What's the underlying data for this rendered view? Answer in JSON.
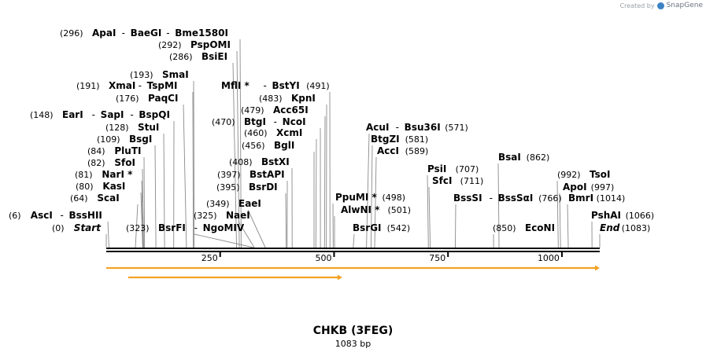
{
  "credit": {
    "prefix": "Created by",
    "brand": "SnapGene"
  },
  "title": "CHKB (3FEG)",
  "length_label": "1083 bp",
  "sequence_length": 1083,
  "colors": {
    "feature": "#f2a227",
    "feature_glow": "#fde7c0",
    "line": "#000000",
    "leader": "#8a8a8a"
  },
  "ticks": [
    {
      "pos": 250,
      "label": "250"
    },
    {
      "pos": 500,
      "label": "500"
    },
    {
      "pos": 750,
      "label": "750"
    },
    {
      "pos": 1000,
      "label": "1000"
    }
  ],
  "features": [
    {
      "name": "feature-arrow-main",
      "start": 0,
      "end": 1083
    },
    {
      "name": "feature-arrow-secondary",
      "start": 48,
      "end": 518
    }
  ],
  "sites": [
    {
      "pos": 296,
      "text": "(296)",
      "names": [
        "ApaI",
        "BaeGI",
        "Bme1580I"
      ]
    },
    {
      "pos": 292,
      "text": "(292)",
      "names": [
        "PspOMI"
      ]
    },
    {
      "pos": 286,
      "text": "(286)",
      "names": [
        "BsiEI"
      ]
    },
    {
      "pos": 193,
      "text": "(193)",
      "names": [
        "SmaI"
      ]
    },
    {
      "pos": 191,
      "text": "(191)",
      "names": [
        "XmaI",
        "TspMI"
      ]
    },
    {
      "pos": 176,
      "text": "(176)",
      "names": [
        "PaqCI"
      ]
    },
    {
      "pos": 148,
      "text": "(148)",
      "names": [
        "EarI",
        "SapI",
        "BspQI"
      ]
    },
    {
      "pos": 128,
      "text": "(128)",
      "names": [
        "StuI"
      ]
    },
    {
      "pos": 109,
      "text": "(109)",
      "names": [
        "BsgI"
      ]
    },
    {
      "pos": 84,
      "text": "(84)",
      "names": [
        "PluTI"
      ]
    },
    {
      "pos": 82,
      "text": "(82)",
      "names": [
        "SfoI"
      ]
    },
    {
      "pos": 81,
      "text": "(81)",
      "names": [
        "NarI *"
      ]
    },
    {
      "pos": 80,
      "text": "(80)",
      "names": [
        "KasI"
      ]
    },
    {
      "pos": 64,
      "text": "(64)",
      "names": [
        "ScaI"
      ]
    },
    {
      "pos": 6,
      "text": "(6)",
      "names": [
        "AscI",
        "BssHII"
      ]
    },
    {
      "pos": 0,
      "text": "(0)",
      "names": [
        "Start"
      ],
      "italic": true
    },
    {
      "pos": 323,
      "text": "(323)",
      "names": [
        "BsrFI",
        "NgoMIV"
      ]
    },
    {
      "pos": 325,
      "text": "(325)",
      "names": [
        "NaeI"
      ]
    },
    {
      "pos": 349,
      "text": "(349)",
      "names": [
        "EaeI"
      ]
    },
    {
      "pos": 395,
      "text": "(395)",
      "names": [
        "BsrDI"
      ]
    },
    {
      "pos": 397,
      "text": "(397)",
      "names": [
        "BstAPI"
      ]
    },
    {
      "pos": 408,
      "text": "(408)",
      "names": [
        "BstXI"
      ]
    },
    {
      "pos": 456,
      "text": "(456)",
      "names": [
        "BglI"
      ]
    },
    {
      "pos": 460,
      "text": "(460)",
      "names": [
        "XcmI"
      ]
    },
    {
      "pos": 470,
      "text": "(470)",
      "names": [
        "BtgI",
        "NcoI"
      ]
    },
    {
      "pos": 479,
      "text": "(479)",
      "names": [
        "Acc65I"
      ]
    },
    {
      "pos": 483,
      "text": "(483)",
      "names": [
        "KpnI"
      ]
    },
    {
      "pos": 491,
      "text": "(491)",
      "names": [
        "MflI *",
        "BstYI"
      ]
    },
    {
      "pos": 498,
      "text": "(498)",
      "names": [
        "PpuMI *"
      ]
    },
    {
      "pos": 501,
      "text": "(501)",
      "names": [
        "AlwNI *"
      ]
    },
    {
      "pos": 542,
      "text": "(542)",
      "names": [
        "BsrGI"
      ]
    },
    {
      "pos": 571,
      "text": "(571)",
      "names": [
        "AcuI",
        "Bsu36I"
      ]
    },
    {
      "pos": 581,
      "text": "(581)",
      "names": [
        "BtgZI"
      ]
    },
    {
      "pos": 589,
      "text": "(589)",
      "names": [
        "AccI"
      ]
    },
    {
      "pos": 707,
      "text": "(707)",
      "names": [
        "PsiI"
      ]
    },
    {
      "pos": 711,
      "text": "(711)",
      "names": [
        "SfcI"
      ]
    },
    {
      "pos": 766,
      "text": "(766)",
      "names": [
        "BssSI",
        "BssSαI"
      ]
    },
    {
      "pos": 850,
      "text": "(850)",
      "names": [
        "EcoNI"
      ]
    },
    {
      "pos": 862,
      "text": "(862)",
      "names": [
        "BsaI"
      ]
    },
    {
      "pos": 992,
      "text": "(992)",
      "names": [
        "TsoI"
      ]
    },
    {
      "pos": 997,
      "text": "(997)",
      "names": [
        "ApoI"
      ]
    },
    {
      "pos": 1014,
      "text": "(1014)",
      "names": [
        "BmrI"
      ]
    },
    {
      "pos": 1066,
      "text": "(1066)",
      "names": [
        "PshAI"
      ]
    },
    {
      "pos": 1083,
      "text": "(1083)",
      "names": [
        "End"
      ],
      "italic": true
    }
  ]
}
